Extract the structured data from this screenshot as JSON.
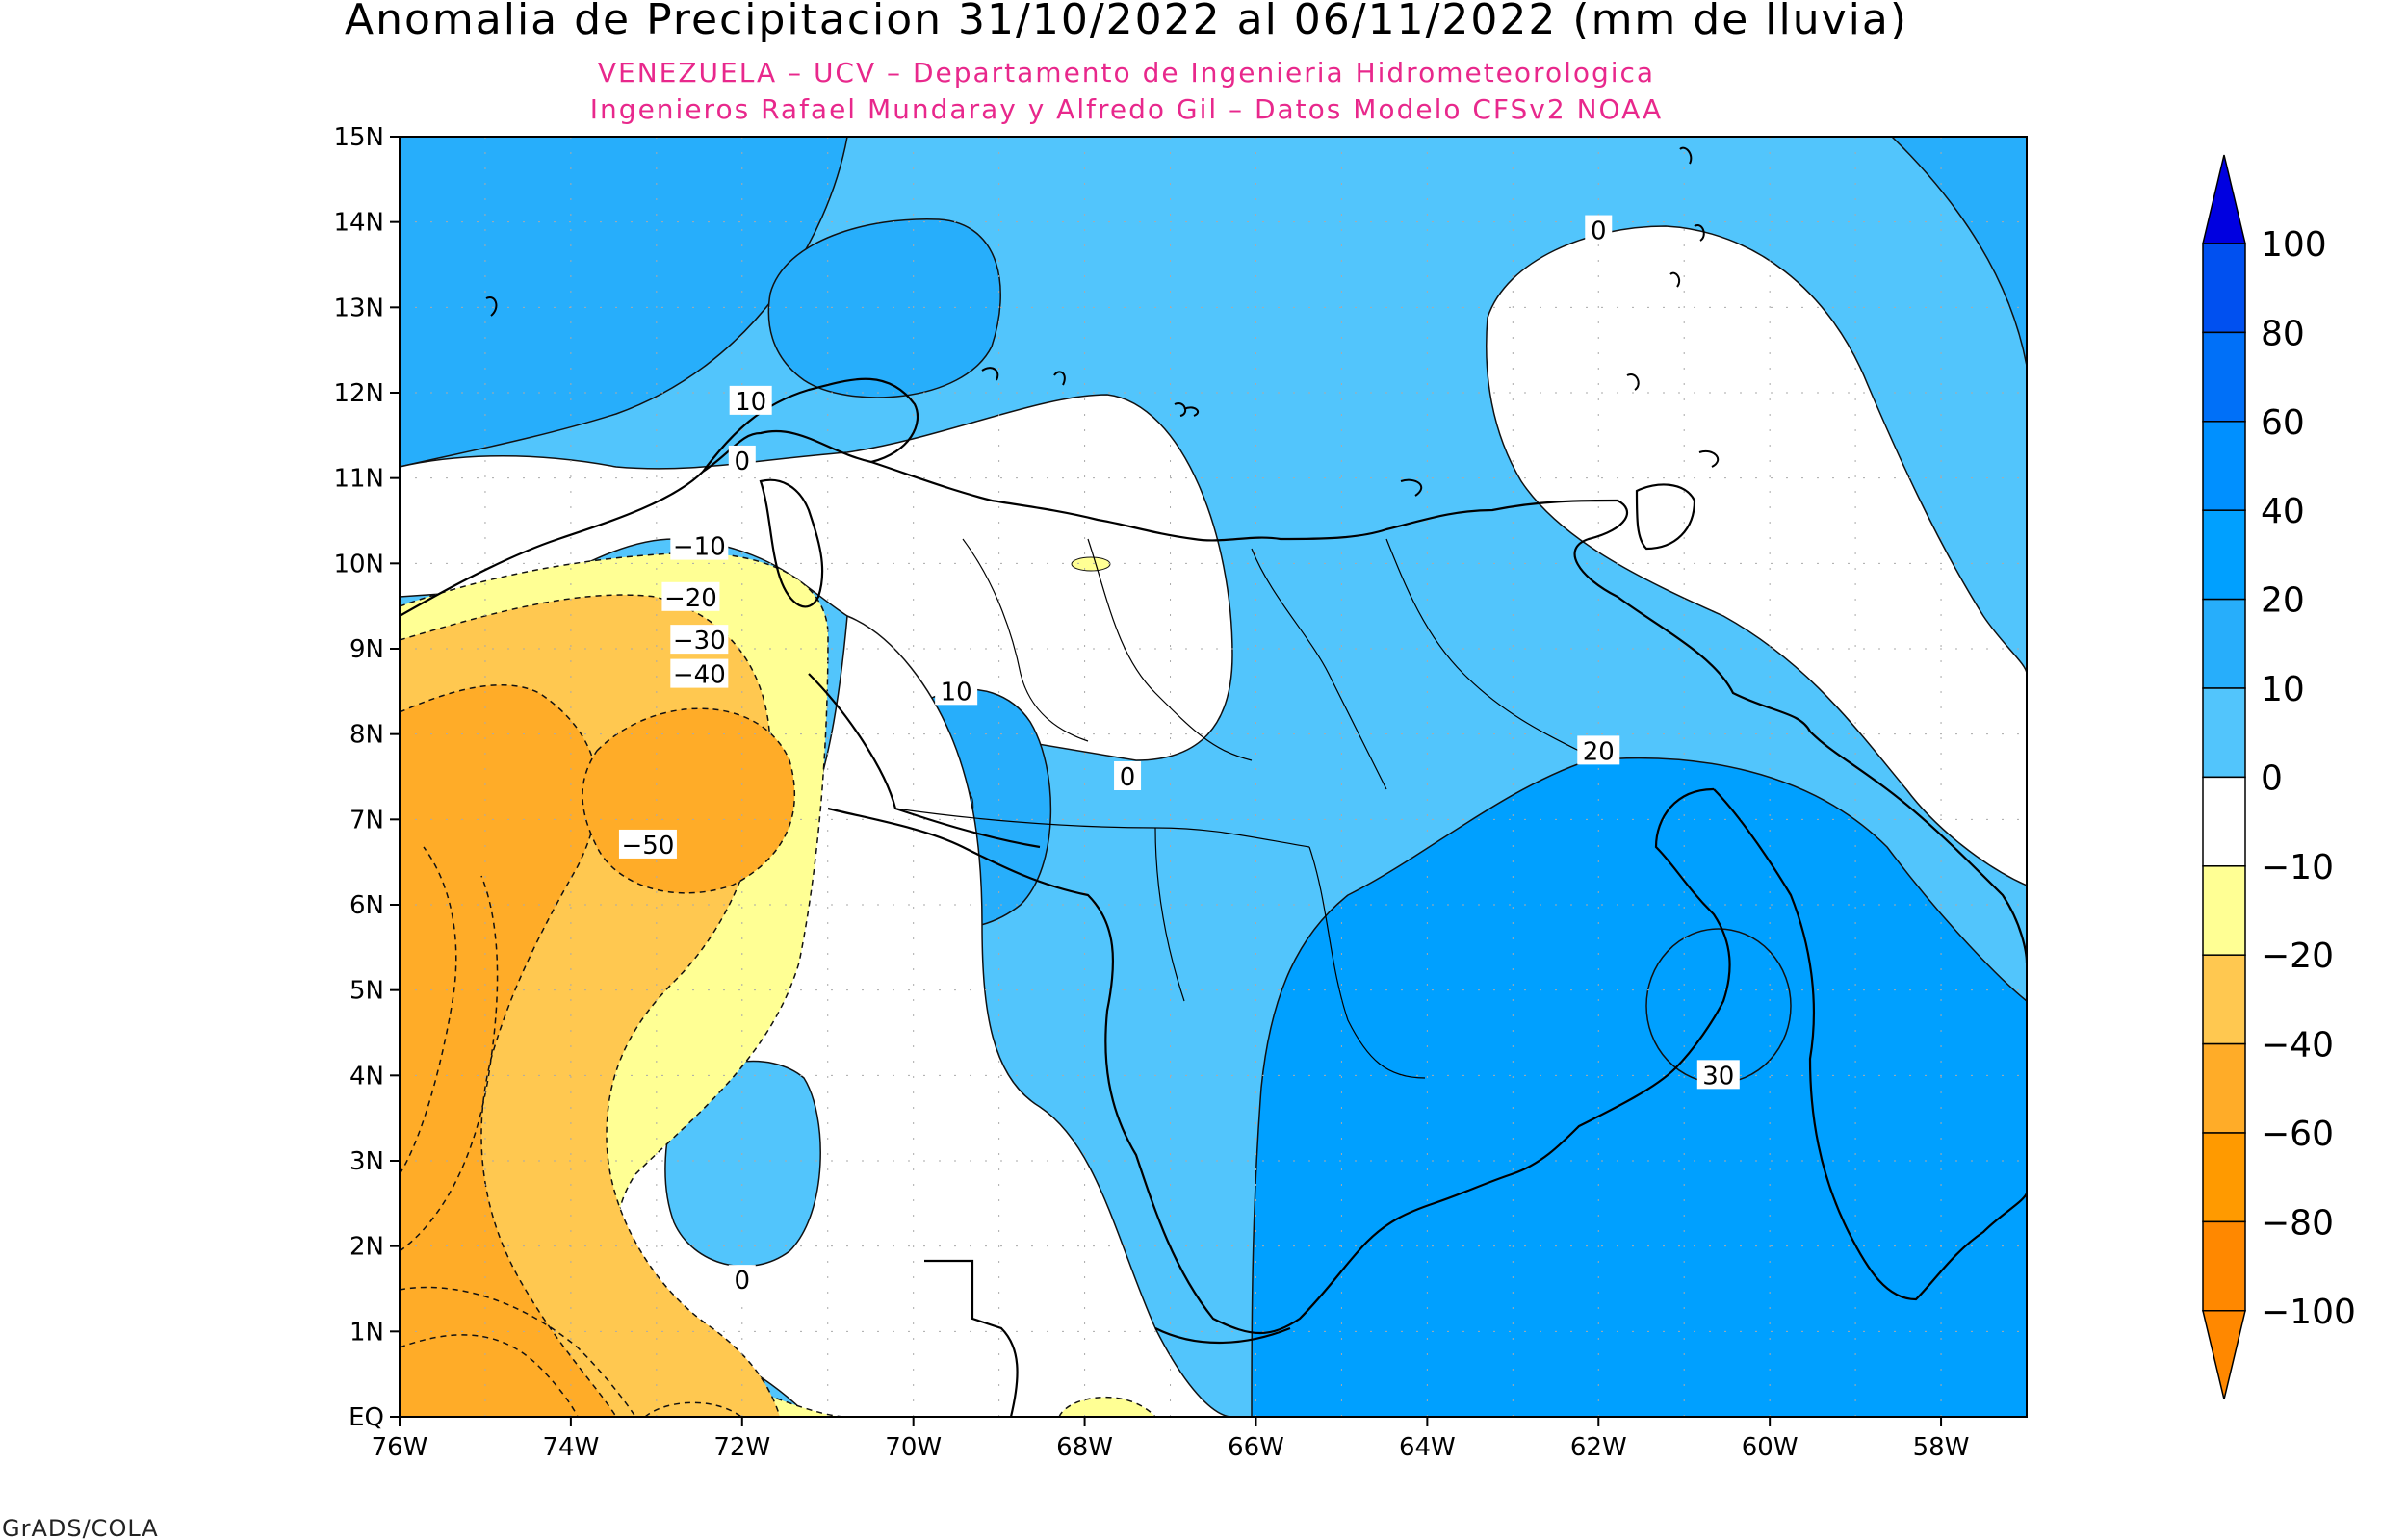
{
  "title": "Anomalia de Precipitacion 31/10/2022 al 06/11/2022 (mm de lluvia)",
  "subtitle_line1": "VENEZUELA – UCV – Departamento de Ingenieria Hidrometeorologica",
  "subtitle_line2": "Ingenieros Rafael Mundaray y Alfredo Gil – Datos Modelo CFSv2 NOAA",
  "credit": "GrADS/COLA",
  "colors": {
    "subtitle": "#e8288c"
  },
  "map": {
    "lon_min": -76,
    "lon_max": -57,
    "lat_min": 0,
    "lat_max": 15,
    "x_ticks": [
      "76W",
      "74W",
      "72W",
      "70W",
      "68W",
      "66W",
      "64W",
      "62W",
      "60W",
      "58W"
    ],
    "y_ticks": [
      "EQ",
      "1N",
      "2N",
      "3N",
      "4N",
      "5N",
      "6N",
      "7N",
      "8N",
      "9N",
      "10N",
      "11N",
      "12N",
      "13N",
      "14N",
      "15N"
    ]
  },
  "contour_labels": [
    {
      "text": "0",
      "lon": -62.0,
      "lat": 13.9
    },
    {
      "text": "10",
      "lon": -71.9,
      "lat": 11.9
    },
    {
      "text": "0",
      "lon": -72.0,
      "lat": 11.2
    },
    {
      "text": "−10",
      "lon": -72.5,
      "lat": 10.2
    },
    {
      "text": "−20",
      "lon": -72.6,
      "lat": 9.6
    },
    {
      "text": "−30",
      "lon": -72.5,
      "lat": 9.1
    },
    {
      "text": "−40",
      "lon": -72.5,
      "lat": 8.7
    },
    {
      "text": "10",
      "lon": -69.5,
      "lat": 8.5
    },
    {
      "text": "0",
      "lon": -67.5,
      "lat": 7.5
    },
    {
      "text": "20",
      "lon": -62.0,
      "lat": 7.8
    },
    {
      "text": "−50",
      "lon": -73.1,
      "lat": 6.7
    },
    {
      "text": "30",
      "lon": -60.6,
      "lat": 4.0
    },
    {
      "text": "0",
      "lon": -72.0,
      "lat": 1.6
    }
  ],
  "colorbar": {
    "levels": [
      "100",
      "80",
      "60",
      "40",
      "20",
      "10",
      "0",
      "−10",
      "−20",
      "−40",
      "−60",
      "−80",
      "−100"
    ],
    "colors": [
      "#0000e0",
      "#0050f0",
      "#0070f8",
      "#0090ff",
      "#00a0ff",
      "#27aefb",
      "#52c5fc",
      "#ffffff",
      "#ffff94",
      "#ffc850",
      "#ffac28",
      "#ff9a00",
      "#ff8800"
    ]
  }
}
